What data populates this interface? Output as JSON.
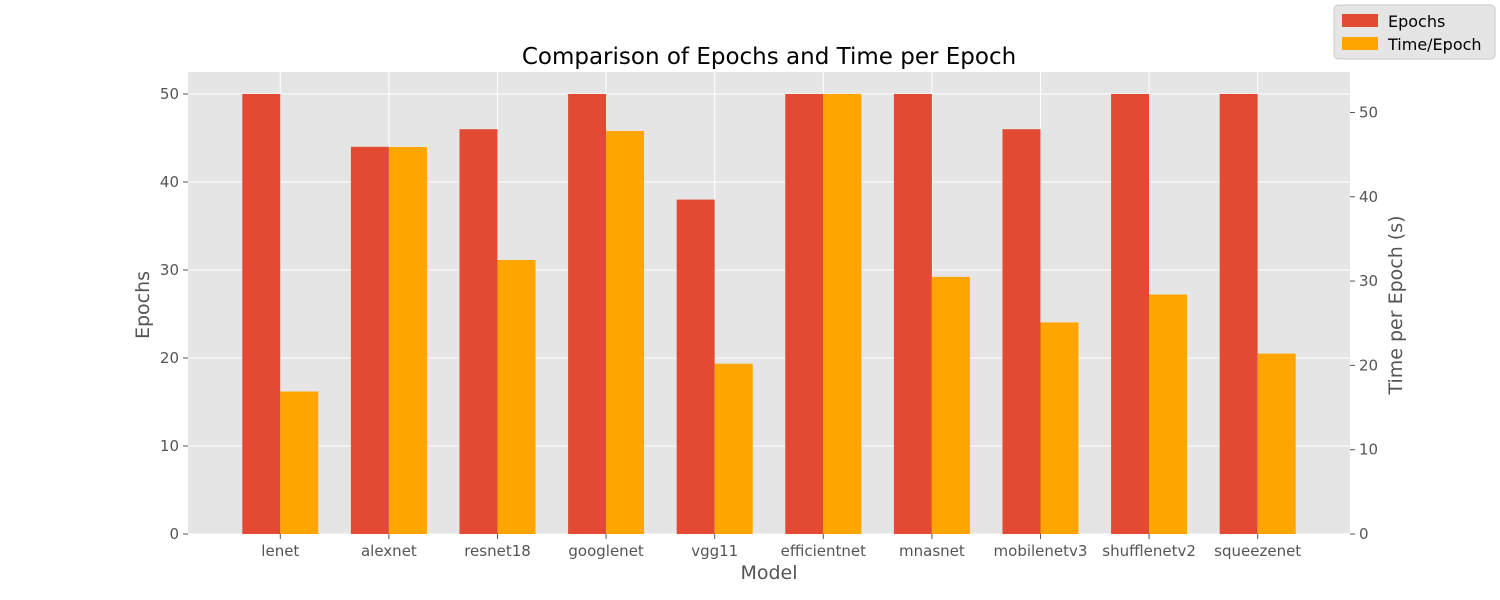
{
  "chart_data": {
    "type": "bar",
    "title": "Comparison of Epochs and Time per Epoch",
    "xlabel": "Model",
    "ylabel": "Epochs",
    "y2label": "Time per Epoch (s)",
    "categories": [
      "lenet",
      "alexnet",
      "resnet18",
      "googlenet",
      "vgg11",
      "efficientnet",
      "mnasnet",
      "mobilenetv3",
      "shufflenetv2",
      "squeezenet"
    ],
    "series": [
      {
        "name": "Epochs",
        "axis": "left",
        "color": "#E24A33",
        "values": [
          50,
          44,
          46,
          50,
          38,
          50,
          50,
          46,
          50,
          50
        ]
      },
      {
        "name": "Time/Epoch",
        "axis": "right",
        "color": "#FFA500",
        "values": [
          16.9,
          45.9,
          32.5,
          47.8,
          20.2,
          52.2,
          30.5,
          25.1,
          28.4,
          21.4
        ]
      }
    ],
    "ylim": [
      0,
      52.5
    ],
    "y2lim": [
      0,
      54.8
    ],
    "yticks": [
      0,
      10,
      20,
      30,
      40,
      50
    ],
    "y2ticks": [
      0,
      10,
      20,
      30,
      40,
      50
    ],
    "grid": true,
    "legend": "top-right",
    "colors": {
      "plot_background": "#E5E5E5",
      "grid": "#FFFFFF",
      "text": "#555555"
    }
  }
}
